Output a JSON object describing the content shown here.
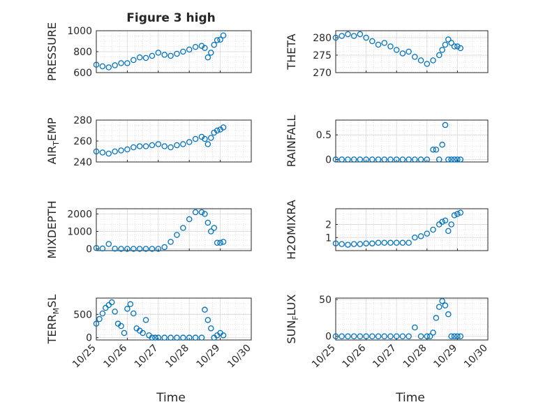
{
  "figure": {
    "title": "Figure 3 high",
    "xlabel": "Time",
    "x_ticks": [
      "10/25",
      "10/26",
      "10/27",
      "10/28",
      "10/29",
      "10/30"
    ],
    "marker_color": "#0072BD"
  },
  "chart_data": [
    {
      "type": "scatter",
      "ylabel": "PRESSURE",
      "x_range": [
        "10/25",
        "10/30"
      ],
      "ylim": [
        600,
        1000
      ],
      "y_ticks": [
        "600",
        "800",
        "1000"
      ],
      "grid": true,
      "x": [
        0.0,
        0.2,
        0.4,
        0.6,
        0.8,
        1.0,
        1.2,
        1.4,
        1.6,
        1.8,
        2.0,
        2.2,
        2.4,
        2.6,
        2.8,
        3.0,
        3.2,
        3.4,
        3.5,
        3.6,
        3.7,
        3.8,
        3.9,
        4.0,
        4.1
      ],
      "y": [
        675,
        660,
        650,
        670,
        690,
        690,
        720,
        745,
        740,
        760,
        790,
        770,
        760,
        780,
        800,
        820,
        845,
        855,
        835,
        745,
        790,
        865,
        910,
        915,
        955
      ]
    },
    {
      "type": "scatter",
      "ylabel": "THETA",
      "x_range": [
        "10/25",
        "10/30"
      ],
      "ylim": [
        270,
        282
      ],
      "y_ticks": [
        "270",
        "275",
        "280"
      ],
      "grid": true,
      "x": [
        0.0,
        0.2,
        0.4,
        0.6,
        0.8,
        1.0,
        1.2,
        1.4,
        1.6,
        1.8,
        2.0,
        2.2,
        2.4,
        2.6,
        2.8,
        3.0,
        3.2,
        3.4,
        3.5,
        3.6,
        3.7,
        3.8,
        3.9,
        4.0,
        4.1
      ],
      "y": [
        280,
        280.5,
        281,
        280.5,
        281,
        280,
        279,
        278,
        278.5,
        277.5,
        276.5,
        275.5,
        276,
        274.5,
        273.5,
        272.5,
        273.5,
        275,
        276.5,
        278,
        279.5,
        278.5,
        277.5,
        277.5,
        277
      ]
    },
    {
      "type": "scatter",
      "ylabel": "AIR_TEMP",
      "x_range": [
        "10/25",
        "10/30"
      ],
      "ylim": [
        240,
        280
      ],
      "y_ticks": [
        "240",
        "260",
        "280"
      ],
      "grid": true,
      "x": [
        0.0,
        0.2,
        0.4,
        0.6,
        0.8,
        1.0,
        1.2,
        1.4,
        1.6,
        1.8,
        2.0,
        2.2,
        2.4,
        2.6,
        2.8,
        3.0,
        3.2,
        3.4,
        3.5,
        3.6,
        3.7,
        3.8,
        3.9,
        4.0,
        4.1
      ],
      "y": [
        250,
        249,
        248,
        250,
        251,
        252,
        254,
        255,
        255,
        256,
        257,
        255,
        254,
        256,
        257,
        259,
        262,
        264,
        262,
        257,
        263,
        268,
        270,
        271,
        273
      ]
    },
    {
      "type": "scatter",
      "ylabel": "RAINFALL",
      "x_range": [
        "10/25",
        "10/30"
      ],
      "ylim": [
        -0.05,
        0.8
      ],
      "y_ticks": [
        "0",
        "0.5"
      ],
      "grid": true,
      "x": [
        0.0,
        0.2,
        0.4,
        0.6,
        0.8,
        1.0,
        1.2,
        1.4,
        1.6,
        1.8,
        2.0,
        2.2,
        2.4,
        2.6,
        2.8,
        3.0,
        3.2,
        3.3,
        3.4,
        3.5,
        3.6,
        3.7,
        3.8,
        3.9,
        4.0,
        4.1
      ],
      "y": [
        0,
        0,
        0,
        0,
        0,
        0,
        0,
        0,
        0,
        0,
        0,
        0,
        0,
        0,
        0,
        0,
        0.2,
        0.2,
        0,
        0.3,
        0.7,
        0,
        0,
        0,
        0,
        0
      ]
    },
    {
      "type": "scatter",
      "ylabel": "MIXDEPTH",
      "x_range": [
        "10/25",
        "10/30"
      ],
      "ylim": [
        -100,
        2300
      ],
      "y_ticks": [
        "0",
        "1000",
        "2000"
      ],
      "grid": true,
      "x": [
        0.0,
        0.2,
        0.4,
        0.6,
        0.8,
        1.0,
        1.2,
        1.4,
        1.6,
        1.8,
        2.0,
        2.2,
        2.4,
        2.6,
        2.8,
        3.0,
        3.2,
        3.4,
        3.5,
        3.6,
        3.7,
        3.8,
        3.9,
        4.0,
        4.1
      ],
      "y": [
        50,
        20,
        280,
        10,
        0,
        0,
        0,
        0,
        0,
        0,
        0,
        100,
        400,
        800,
        1200,
        1700,
        2100,
        2100,
        2000,
        1500,
        1000,
        1200,
        350,
        350,
        400
      ]
    },
    {
      "type": "scatter",
      "ylabel": "H2OMIXRA",
      "x_range": [
        "10/25",
        "10/30"
      ],
      "ylim": [
        0,
        3.2
      ],
      "y_ticks": [
        "1",
        "2"
      ],
      "grid": true,
      "x": [
        0.0,
        0.2,
        0.4,
        0.6,
        0.8,
        1.0,
        1.2,
        1.4,
        1.6,
        1.8,
        2.0,
        2.2,
        2.4,
        2.6,
        2.8,
        3.0,
        3.2,
        3.4,
        3.5,
        3.6,
        3.7,
        3.8,
        3.9,
        4.0,
        4.1
      ],
      "y": [
        0.55,
        0.5,
        0.45,
        0.5,
        0.5,
        0.55,
        0.55,
        0.6,
        0.6,
        0.6,
        0.6,
        0.6,
        0.6,
        1.0,
        1.1,
        1.3,
        1.6,
        2.0,
        2.2,
        2.3,
        1.5,
        2.0,
        2.7,
        2.8,
        2.9
      ]
    },
    {
      "type": "scatter",
      "ylabel": "TERR_MSL",
      "x_range": [
        "10/25",
        "10/30"
      ],
      "ylim": [
        -50,
        850
      ],
      "y_ticks": [
        "0",
        "500"
      ],
      "grid": true,
      "x": [
        0.0,
        0.1,
        0.2,
        0.3,
        0.4,
        0.5,
        0.6,
        0.7,
        0.8,
        0.9,
        1.0,
        1.1,
        1.2,
        1.3,
        1.4,
        1.5,
        1.6,
        1.7,
        1.8,
        1.9,
        2.0,
        2.2,
        2.4,
        2.6,
        2.8,
        3.0,
        3.2,
        3.4,
        3.5,
        3.6,
        3.7,
        3.8,
        3.9,
        4.0,
        4.1
      ],
      "y": [
        300,
        400,
        520,
        640,
        700,
        760,
        560,
        300,
        250,
        100,
        620,
        720,
        520,
        200,
        150,
        100,
        380,
        50,
        0,
        0,
        0,
        0,
        0,
        0,
        0,
        0,
        0,
        0,
        600,
        380,
        200,
        0,
        50,
        100,
        50
      ]
    },
    {
      "type": "scatter",
      "ylabel": "SUN_FLUX",
      "x_range": [
        "10/25",
        "10/30"
      ],
      "ylim": [
        -5,
        52
      ],
      "y_ticks": [
        "0",
        "50"
      ],
      "grid": true,
      "x": [
        0.0,
        0.2,
        0.4,
        0.6,
        0.8,
        1.0,
        1.2,
        1.4,
        1.6,
        1.8,
        2.0,
        2.2,
        2.4,
        2.6,
        2.8,
        3.0,
        3.1,
        3.2,
        3.3,
        3.4,
        3.5,
        3.6,
        3.7,
        3.8,
        3.9,
        4.0,
        4.1
      ],
      "y": [
        0,
        0,
        0,
        0,
        0,
        0,
        0,
        0,
        0,
        0,
        0,
        0,
        0,
        12,
        0,
        0,
        0,
        5,
        25,
        40,
        48,
        42,
        30,
        0,
        0,
        0,
        0
      ]
    }
  ]
}
